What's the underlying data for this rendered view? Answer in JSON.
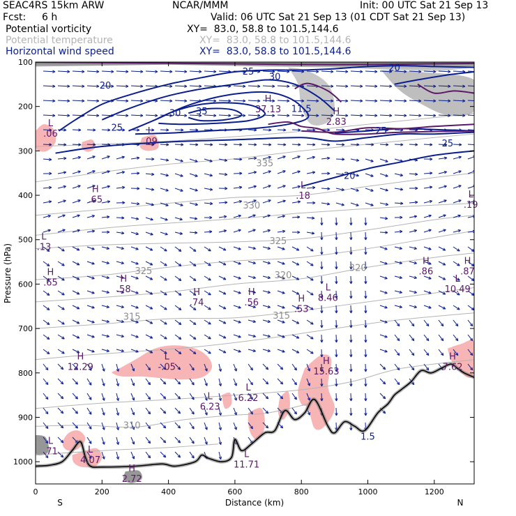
{
  "header": {
    "model": "SEAC4RS 15km ARW",
    "fcst_label": "Fcst:",
    "fcst_value": "6 h",
    "org": "NCAR/MMM",
    "init": "Init: 00 UTC Sat 21 Sep 13",
    "valid": "Valid: 06 UTC Sat 21 Sep 13 (01 CDT Sat 21 Sep 13)",
    "fields": [
      {
        "name": "Potential vorticity",
        "xy": "XY=  83.0, 58.8 to 101.5,144.6",
        "color": "#000000"
      },
      {
        "name": "Potential temperature",
        "xy": "XY=  83.0, 58.8 to 101.5,144.6",
        "color": "#b4b4b4"
      },
      {
        "name": "Horizontal wind speed",
        "xy": "XY=  83.0, 58.8 to 101.5,144.6",
        "color": "#0a1e8c"
      }
    ]
  },
  "colors": {
    "pv_contour": "#5a1a66",
    "pv_fill": "#f7b5b5",
    "wind_speed": "#0a1e8c",
    "theta": "#b4b4b4",
    "terrain": "#000000",
    "cloud_gray": "#8c8c8c"
  },
  "chart_data": {
    "type": "cross-section",
    "xlabel": "Distance (km)",
    "ylabel": "Pressure (hPa)",
    "xlim": [
      0,
      1320
    ],
    "ylim": [
      1050,
      100
    ],
    "xticks": [
      0,
      200,
      400,
      600,
      800,
      1000,
      1200
    ],
    "yticks": [
      100,
      200,
      300,
      400,
      500,
      600,
      700,
      800,
      900,
      1000
    ],
    "x_end_labels": {
      "left": "S",
      "right": "N"
    },
    "wind_speed_contours": [
      {
        "label": "20",
        "x": 210,
        "p": 160
      },
      {
        "label": "25",
        "x": 245,
        "p": 255
      },
      {
        "label": "30",
        "x": 420,
        "p": 222
      },
      {
        "label": "35",
        "x": 500,
        "p": 218
      },
      {
        "label": "30",
        "x": 720,
        "p": 140
      },
      {
        "label": "25",
        "x": 640,
        "p": 128
      },
      {
        "label": "20",
        "x": 1080,
        "p": 120
      },
      {
        "label": "25",
        "x": 1040,
        "p": 262
      },
      {
        "label": "25",
        "x": 1240,
        "p": 290
      },
      {
        "label": "20",
        "x": 945,
        "p": 363
      },
      {
        "label": "11.5",
        "x": 800,
        "p": 212
      },
      {
        "label": "1.5",
        "x": 1000,
        "p": 950
      }
    ],
    "theta_contours": [
      {
        "label": "335",
        "x": 690,
        "p": 335
      },
      {
        "label": "330",
        "x": 650,
        "p": 430
      },
      {
        "label": "325",
        "x": 730,
        "p": 510
      },
      {
        "label": "325",
        "x": 325,
        "p": 577
      },
      {
        "label": "320",
        "x": 745,
        "p": 587
      },
      {
        "label": "320",
        "x": 970,
        "p": 570
      },
      {
        "label": "315",
        "x": 290,
        "p": 680
      },
      {
        "label": "315",
        "x": 740,
        "p": 678
      },
      {
        "label": "310",
        "x": 290,
        "p": 925
      }
    ],
    "pv_extrema": [
      {
        "type": "L",
        "value": ".06",
        "x": 45,
        "p": 265
      },
      {
        "type": "L",
        "value": ".09",
        "x": 345,
        "p": 282
      },
      {
        "type": "H",
        "value": ".65",
        "x": 180,
        "p": 413
      },
      {
        "type": "L",
        "value": ".18",
        "x": 805,
        "p": 405
      },
      {
        "type": "L",
        "value": ".19",
        "x": 1310,
        "p": 425
      },
      {
        "type": "L",
        "value": ".13",
        "x": 25,
        "p": 520
      },
      {
        "type": "H",
        "value": ".65",
        "x": 45,
        "p": 600
      },
      {
        "type": "H",
        "value": ".58",
        "x": 265,
        "p": 615
      },
      {
        "type": "H",
        "value": ".74",
        "x": 485,
        "p": 645
      },
      {
        "type": "H",
        "value": ".56",
        "x": 650,
        "p": 645
      },
      {
        "type": "H",
        "value": ".53",
        "x": 800,
        "p": 660
      },
      {
        "type": "L",
        "value": "8.46",
        "x": 880,
        "p": 635
      },
      {
        "type": "H",
        "value": ".86",
        "x": 1175,
        "p": 575
      },
      {
        "type": "L",
        "value": "10.49",
        "x": 1270,
        "p": 615
      },
      {
        "type": "H",
        "value": ".87",
        "x": 1300,
        "p": 575
      },
      {
        "type": "H",
        "value": "37.13",
        "x": 700,
        "p": 210
      },
      {
        "type": "H",
        "value": "2.83",
        "x": 905,
        "p": 238
      },
      {
        "type": "H",
        "value": "12.29",
        "x": 135,
        "p": 790
      },
      {
        "type": "L",
        "value": "-.05",
        "x": 395,
        "p": 790
      },
      {
        "type": "H",
        "value": "15.63",
        "x": 875,
        "p": 800
      },
      {
        "type": "H",
        "value": "7.62",
        "x": 1255,
        "p": 790
      },
      {
        "type": "L",
        "value": "6.23",
        "x": 525,
        "p": 880
      },
      {
        "type": "L",
        "value": "6.22",
        "x": 640,
        "p": 860
      },
      {
        "type": "L",
        "value": ".71",
        "x": 45,
        "p": 980
      },
      {
        "type": "L",
        "value": "4.07",
        "x": 165,
        "p": 1000
      },
      {
        "type": "H",
        "value": "2.72",
        "x": 290,
        "p": 1042
      },
      {
        "type": "L",
        "value": "11.71",
        "x": 635,
        "p": 1010
      }
    ],
    "terrain_surface_hpa": [
      [
        0,
        1010
      ],
      [
        40,
        1008
      ],
      [
        80,
        1000
      ],
      [
        110,
        975
      ],
      [
        135,
        955
      ],
      [
        150,
        990
      ],
      [
        165,
        1010
      ],
      [
        200,
        1012
      ],
      [
        300,
        1010
      ],
      [
        380,
        1005
      ],
      [
        420,
        1010
      ],
      [
        480,
        1000
      ],
      [
        500,
        985
      ],
      [
        520,
        992
      ],
      [
        560,
        1000
      ],
      [
        590,
        990
      ],
      [
        600,
        950
      ],
      [
        620,
        975
      ],
      [
        650,
        960
      ],
      [
        690,
        935
      ],
      [
        720,
        930
      ],
      [
        750,
        885
      ],
      [
        780,
        905
      ],
      [
        810,
        890
      ],
      [
        840,
        860
      ],
      [
        880,
        920
      ],
      [
        900,
        935
      ],
      [
        930,
        910
      ],
      [
        960,
        920
      ],
      [
        990,
        930
      ],
      [
        1030,
        890
      ],
      [
        1060,
        870
      ],
      [
        1080,
        850
      ],
      [
        1100,
        838
      ],
      [
        1130,
        820
      ],
      [
        1160,
        795
      ],
      [
        1190,
        800
      ],
      [
        1220,
        790
      ],
      [
        1250,
        780
      ],
      [
        1270,
        790
      ],
      [
        1290,
        800
      ],
      [
        1320,
        810
      ]
    ]
  }
}
